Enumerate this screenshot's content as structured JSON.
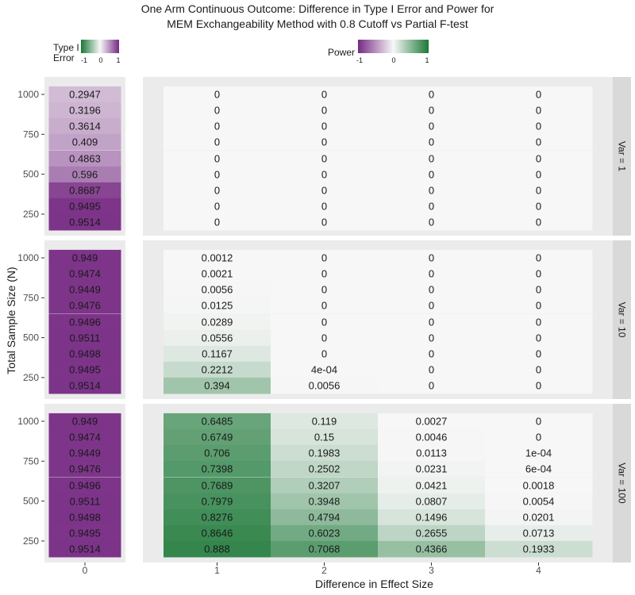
{
  "title_line1": "One Arm Continuous Outcome: Difference in Type I Error and Power for",
  "title_line2": "MEM Exchangeability Method with 0.8 Cutoff vs Partial F-test",
  "legend_type1": {
    "title_line1": "Type I",
    "title_line2": "Error",
    "ticks": [
      "-1",
      "0",
      "1"
    ],
    "low_color": "#1b7837",
    "mid_color": "#f7f7f7",
    "high_color": "#762a83"
  },
  "legend_power": {
    "title": "Power",
    "ticks": [
      "-1",
      "0",
      "1"
    ],
    "low_color": "#762a83",
    "mid_color": "#f7f7f7",
    "high_color": "#1b7837"
  },
  "chart_data": {
    "type": "heatmap",
    "xlabel": "Difference in Effect Size",
    "ylabel": "Total Sample Size (N)",
    "y_ticks": [
      1000,
      750,
      500,
      250
    ],
    "sample_sizes": [
      1000,
      900,
      800,
      700,
      600,
      500,
      400,
      300,
      200
    ],
    "left_panel": {
      "x_label": "0",
      "measure": "Type I Error"
    },
    "right_panel": {
      "x_labels": [
        "1",
        "2",
        "3",
        "4"
      ],
      "measure": "Power"
    },
    "facets": [
      {
        "label": "Var = 1",
        "type1_values": [
          0.2947,
          0.3196,
          0.3614,
          0.409,
          0.4863,
          0.596,
          0.8687,
          0.9495,
          0.9514
        ],
        "type1_labels": [
          "0.2947",
          "0.3196",
          "0.3614",
          "0.409",
          "0.4863",
          "0.596",
          "0.8687",
          "0.9495",
          "0.9514"
        ],
        "power_values": [
          [
            0,
            0,
            0,
            0
          ],
          [
            0,
            0,
            0,
            0
          ],
          [
            0,
            0,
            0,
            0
          ],
          [
            0,
            0,
            0,
            0
          ],
          [
            0,
            0,
            0,
            0
          ],
          [
            0,
            0,
            0,
            0
          ],
          [
            0,
            0,
            0,
            0
          ],
          [
            0,
            0,
            0,
            0
          ],
          [
            0,
            0,
            0,
            0
          ]
        ],
        "power_labels": [
          [
            "0",
            "0",
            "0",
            "0"
          ],
          [
            "0",
            "0",
            "0",
            "0"
          ],
          [
            "0",
            "0",
            "0",
            "0"
          ],
          [
            "0",
            "0",
            "0",
            "0"
          ],
          [
            "0",
            "0",
            "0",
            "0"
          ],
          [
            "0",
            "0",
            "0",
            "0"
          ],
          [
            "0",
            "0",
            "0",
            "0"
          ],
          [
            "0",
            "0",
            "0",
            "0"
          ],
          [
            "0",
            "0",
            "0",
            "0"
          ]
        ]
      },
      {
        "label": "Var = 10",
        "type1_values": [
          0.949,
          0.9474,
          0.9449,
          0.9476,
          0.9496,
          0.9511,
          0.9498,
          0.9495,
          0.9514
        ],
        "type1_labels": [
          "0.949",
          "0.9474",
          "0.9449",
          "0.9476",
          "0.9496",
          "0.9511",
          "0.9498",
          "0.9495",
          "0.9514"
        ],
        "power_values": [
          [
            0.0012,
            0,
            0,
            0
          ],
          [
            0.0021,
            0,
            0,
            0
          ],
          [
            0.0056,
            0,
            0,
            0
          ],
          [
            0.0125,
            0,
            0,
            0
          ],
          [
            0.0289,
            0,
            0,
            0
          ],
          [
            0.0556,
            0,
            0,
            0
          ],
          [
            0.1167,
            0,
            0,
            0
          ],
          [
            0.2212,
            0.0004,
            0,
            0
          ],
          [
            0.394,
            0.0056,
            0,
            0
          ]
        ],
        "power_labels": [
          [
            "0.0012",
            "0",
            "0",
            "0"
          ],
          [
            "0.0021",
            "0",
            "0",
            "0"
          ],
          [
            "0.0056",
            "0",
            "0",
            "0"
          ],
          [
            "0.0125",
            "0",
            "0",
            "0"
          ],
          [
            "0.0289",
            "0",
            "0",
            "0"
          ],
          [
            "0.0556",
            "0",
            "0",
            "0"
          ],
          [
            "0.1167",
            "0",
            "0",
            "0"
          ],
          [
            "0.2212",
            "4e-04",
            "0",
            "0"
          ],
          [
            "0.394",
            "0.0056",
            "0",
            "0"
          ]
        ]
      },
      {
        "label": "Var = 100",
        "type1_values": [
          0.949,
          0.9474,
          0.9449,
          0.9476,
          0.9496,
          0.9511,
          0.9498,
          0.9495,
          0.9514
        ],
        "type1_labels": [
          "0.949",
          "0.9474",
          "0.9449",
          "0.9476",
          "0.9496",
          "0.9511",
          "0.9498",
          "0.9495",
          "0.9514"
        ],
        "power_values": [
          [
            0.6485,
            0.119,
            0.0027,
            0
          ],
          [
            0.6749,
            0.15,
            0.0046,
            0
          ],
          [
            0.706,
            0.1983,
            0.0113,
            0.0001
          ],
          [
            0.7398,
            0.2502,
            0.0231,
            0.0006
          ],
          [
            0.7689,
            0.3207,
            0.0421,
            0.0018
          ],
          [
            0.7979,
            0.3948,
            0.0807,
            0.0054
          ],
          [
            0.8276,
            0.4794,
            0.1496,
            0.0201
          ],
          [
            0.8646,
            0.6023,
            0.2655,
            0.0713
          ],
          [
            0.888,
            0.7068,
            0.4366,
            0.1933
          ]
        ],
        "power_labels": [
          [
            "0.6485",
            "0.119",
            "0.0027",
            "0"
          ],
          [
            "0.6749",
            "0.15",
            "0.0046",
            "0"
          ],
          [
            "0.706",
            "0.1983",
            "0.0113",
            "1e-04"
          ],
          [
            "0.7398",
            "0.2502",
            "0.0231",
            "6e-04"
          ],
          [
            "0.7689",
            "0.3207",
            "0.0421",
            "0.0018"
          ],
          [
            "0.7979",
            "0.3948",
            "0.0807",
            "0.0054"
          ],
          [
            "0.8276",
            "0.4794",
            "0.1496",
            "0.0201"
          ],
          [
            "0.8646",
            "0.6023",
            "0.2655",
            "0.0713"
          ],
          [
            "0.888",
            "0.7068",
            "0.4366",
            "0.1933"
          ]
        ]
      }
    ]
  }
}
